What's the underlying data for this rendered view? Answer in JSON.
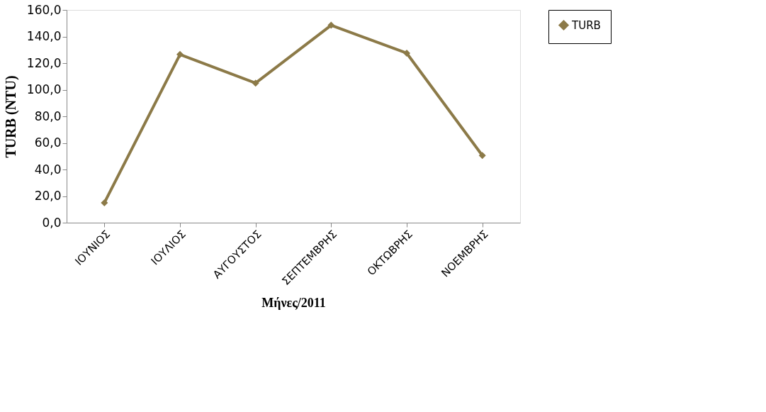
{
  "chart_data": {
    "type": "line",
    "xlabel": "Μήνες/2011",
    "ylabel": "TURB (NTU)",
    "categories": [
      "ΙΟΥΝΙΟΣ",
      "ΙΟΥΛΙΟΣ",
      "ΑΥΓΟΥΣΤΟΣ",
      "ΣΕΠΤΕΜΒΡΗΣ",
      "ΟΚΤΩΒΡΗΣ",
      "ΝΟΕΜΒΡΗΣ"
    ],
    "series": [
      {
        "name": "TURB",
        "color": "#8c7a48",
        "values": [
          15,
          126.5,
          105,
          148.5,
          127.5,
          50.5
        ]
      }
    ],
    "ylim": [
      0,
      160
    ],
    "yticks": [
      {
        "value": 0,
        "label": "0,0"
      },
      {
        "value": 20,
        "label": "20,0"
      },
      {
        "value": 40,
        "label": "40,0"
      },
      {
        "value": 60,
        "label": "60,0"
      },
      {
        "value": 80,
        "label": "80,0"
      },
      {
        "value": 100,
        "label": "100,0"
      },
      {
        "value": 120,
        "label": "120,0"
      },
      {
        "value": 140,
        "label": "140,0"
      },
      {
        "value": 160,
        "label": "160,0"
      }
    ],
    "grid": false,
    "legend": "right",
    "marker": "diamond",
    "line_style": "solid"
  }
}
